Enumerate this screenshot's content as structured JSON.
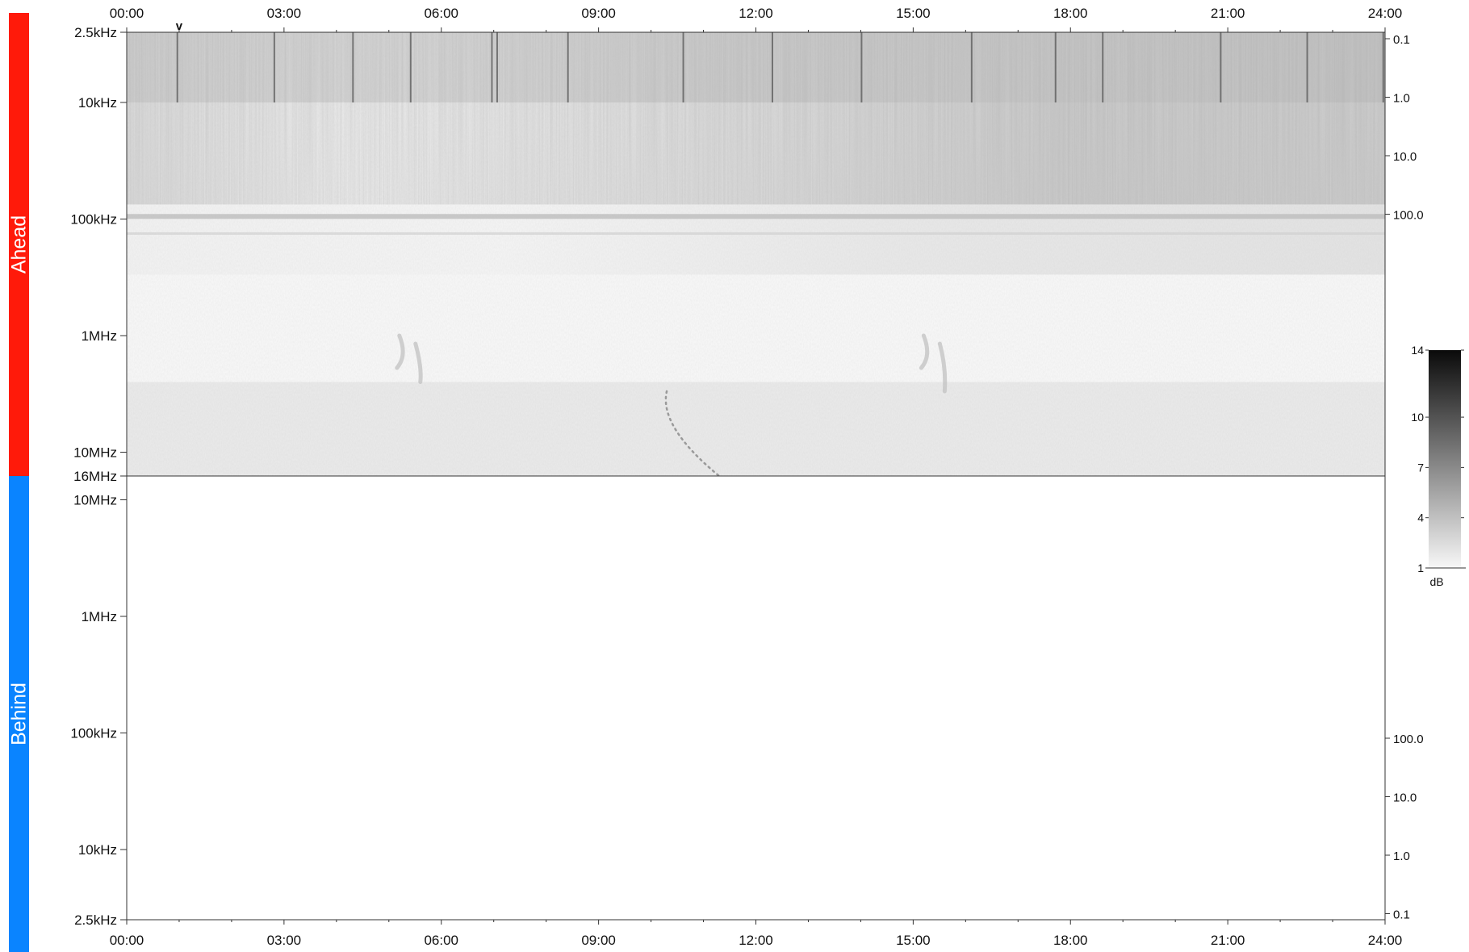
{
  "panels": {
    "ahead": {
      "label": "Ahead",
      "color": "#ff1a0a"
    },
    "behind": {
      "label": "Behind",
      "color": "#0a84ff"
    }
  },
  "chart_data": {
    "type": "heatmap",
    "x_unit": "UT hours",
    "x_range": [
      0,
      24
    ],
    "x_ticks": [
      {
        "label": "00:00",
        "value": 0
      },
      {
        "label": "03:00",
        "value": 3
      },
      {
        "label": "06:00",
        "value": 6
      },
      {
        "label": "09:00",
        "value": 9
      },
      {
        "label": "12:00",
        "value": 12
      },
      {
        "label": "15:00",
        "value": 15
      },
      {
        "label": "18:00",
        "value": 18
      },
      {
        "label": "21:00",
        "value": 21
      },
      {
        "label": "24:00",
        "value": 24
      }
    ],
    "x_marker": {
      "symbol": "v",
      "value": 1.0
    },
    "ahead": {
      "y_range_hz": [
        2500,
        16000000
      ],
      "y_ticks": [
        {
          "label": "2.5kHz",
          "value": 2500
        },
        {
          "label": "10kHz",
          "value": 10000
        },
        {
          "label": "100kHz",
          "value": 100000
        },
        {
          "label": "1MHz",
          "value": 1000000
        },
        {
          "label": "10MHz",
          "value": 10000000
        },
        {
          "label": "16MHz",
          "value": 16000000
        }
      ],
      "right_ticks": [
        {
          "label": "0.1",
          "value": 0.1
        },
        {
          "label": "1.0",
          "value": 1.0
        },
        {
          "label": "10.0",
          "value": 10.0
        },
        {
          "label": "100.0",
          "value": 100.0
        }
      ],
      "features": [
        {
          "type": "emission_band",
          "f_low_hz": 2500,
          "f_high_hz": 10000,
          "intensity_db": 7
        },
        {
          "type": "emission_band",
          "f_low_hz": 10000,
          "f_high_hz": 100000,
          "intensity_db": 4
        },
        {
          "type": "emission_line",
          "f_hz": 95000,
          "intensity_db": 6
        },
        {
          "type": "type_iii_burst",
          "start_hour": 5.2,
          "f_start_hz": 1000000,
          "f_end_hz": 2500000
        },
        {
          "type": "type_iii_burst",
          "start_hour": 15.2,
          "f_start_hz": 1000000,
          "f_end_hz": 3000000
        },
        {
          "type": "type_ii_drift",
          "start_hour": 10.3,
          "end_hour": 11.3,
          "f_start_hz": 3000000,
          "f_end_hz": 16000000
        }
      ]
    },
    "behind": {
      "y_range_hz": [
        2500,
        10000000
      ],
      "y_ticks": [
        {
          "label": "10MHz",
          "value": 10000000
        },
        {
          "label": "1MHz",
          "value": 1000000
        },
        {
          "label": "100kHz",
          "value": 100000
        },
        {
          "label": "10kHz",
          "value": 10000
        },
        {
          "label": "2.5kHz",
          "value": 2500
        }
      ],
      "right_ticks": [
        {
          "label": "100.0",
          "value": 100.0
        },
        {
          "label": "10.0",
          "value": 10.0
        },
        {
          "label": "1.0",
          "value": 1.0
        },
        {
          "label": "0.1",
          "value": 0.1
        }
      ],
      "features": []
    },
    "colorbar": {
      "unit": "dB",
      "range": [
        1,
        14
      ],
      "ticks": [
        {
          "label": "14",
          "value": 14
        },
        {
          "label": "10",
          "value": 10
        },
        {
          "label": "7",
          "value": 7
        },
        {
          "label": "4",
          "value": 4
        },
        {
          "label": "1",
          "value": 1
        }
      ]
    }
  }
}
